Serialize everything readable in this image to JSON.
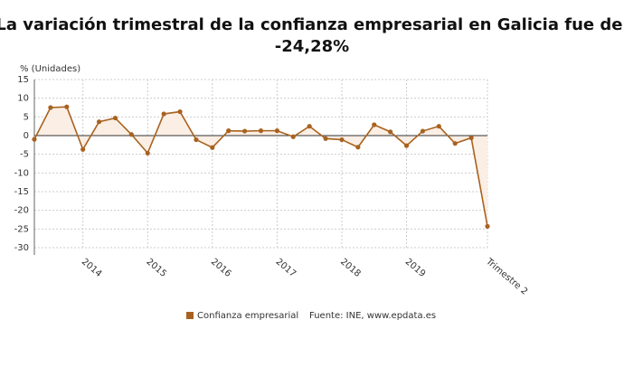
{
  "chart_data": {
    "type": "line",
    "title_lines": [
      "La variación trimestral de la confianza empresarial en Galicia fue del",
      "-24,28%"
    ],
    "y_label": "% (Unidades)",
    "categories": [
      null,
      null,
      null,
      "2014",
      null,
      null,
      null,
      "2015",
      null,
      null,
      null,
      "2016",
      null,
      null,
      null,
      "2017",
      null,
      null,
      null,
      "2018",
      null,
      null,
      null,
      "2019",
      null,
      null,
      null,
      null,
      "Trimestre 2"
    ],
    "series": [
      {
        "name": "Confianza empresarial",
        "color": "#a8621f",
        "values": [
          -1,
          7.5,
          7.7,
          -3.7,
          3.7,
          4.7,
          0.3,
          -4.7,
          5.8,
          6.4,
          -1.1,
          -3.2,
          1.3,
          1.2,
          1.3,
          1.3,
          -0.3,
          2.5,
          -0.8,
          -1.1,
          -3.1,
          2.9,
          1.0,
          -2.7,
          1.2,
          2.5,
          -2.1,
          -0.6,
          -24.28
        ]
      }
    ],
    "ylim": [
      -30,
      15
    ],
    "yticks": [
      15,
      10,
      5,
      0,
      -5,
      -10,
      -15,
      -20,
      -25,
      -30
    ],
    "grid": true,
    "fill_color": "#fbeee4",
    "source": "Fuente: INE, www.epdata.es"
  }
}
